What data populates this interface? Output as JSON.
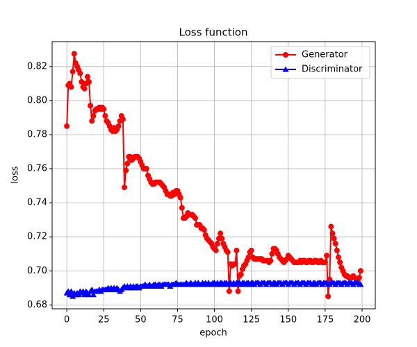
{
  "chart_data": {
    "type": "line",
    "title": "Loss function",
    "xlabel": "epoch",
    "ylabel": "loss",
    "x": [
      0,
      1,
      2,
      3,
      4,
      5,
      6,
      7,
      8,
      9,
      10,
      11,
      12,
      13,
      14,
      15,
      16,
      17,
      18,
      19,
      20,
      21,
      22,
      23,
      24,
      25,
      26,
      27,
      28,
      29,
      30,
      31,
      32,
      33,
      34,
      35,
      36,
      37,
      38,
      39,
      40,
      41,
      42,
      43,
      44,
      45,
      46,
      47,
      48,
      49,
      50,
      51,
      52,
      53,
      54,
      55,
      56,
      57,
      58,
      59,
      60,
      61,
      62,
      63,
      64,
      65,
      66,
      67,
      68,
      69,
      70,
      71,
      72,
      73,
      74,
      75,
      76,
      77,
      78,
      79,
      80,
      81,
      82,
      83,
      84,
      85,
      86,
      87,
      88,
      89,
      90,
      91,
      92,
      93,
      94,
      95,
      96,
      97,
      98,
      99,
      100,
      101,
      102,
      103,
      104,
      105,
      106,
      107,
      108,
      109,
      110,
      111,
      112,
      113,
      114,
      115,
      116,
      117,
      118,
      119,
      120,
      121,
      122,
      123,
      124,
      125,
      126,
      127,
      128,
      129,
      130,
      131,
      132,
      133,
      134,
      135,
      136,
      137,
      138,
      139,
      140,
      141,
      142,
      143,
      144,
      145,
      146,
      147,
      148,
      149,
      150,
      151,
      152,
      153,
      154,
      155,
      156,
      157,
      158,
      159,
      160,
      161,
      162,
      163,
      164,
      165,
      166,
      167,
      168,
      169,
      170,
      171,
      172,
      173,
      174,
      175,
      176,
      177,
      178,
      179,
      180,
      181,
      182,
      183,
      184,
      185,
      186,
      187,
      188,
      189,
      190,
      191,
      192,
      193,
      194,
      195,
      196,
      197,
      198,
      199
    ],
    "series": [
      {
        "name": "Generator",
        "color": "#ff0000",
        "marker": "o",
        "values": [
          0.785,
          0.809,
          0.81,
          0.808,
          0.817,
          0.8275,
          0.822,
          0.82,
          0.818,
          0.816,
          0.811,
          0.808,
          0.807,
          0.81,
          0.814,
          0.811,
          0.797,
          0.788,
          0.791,
          0.794,
          0.795,
          0.795,
          0.796,
          0.795,
          0.796,
          0.795,
          0.791,
          0.788,
          0.787,
          0.785,
          0.783,
          0.782,
          0.784,
          0.782,
          0.783,
          0.785,
          0.788,
          0.791,
          0.789,
          0.749,
          0.759,
          0.763,
          0.767,
          0.767,
          0.765,
          0.766,
          0.767,
          0.767,
          0.767,
          0.766,
          0.764,
          0.762,
          0.76,
          0.76,
          0.76,
          0.756,
          0.754,
          0.752,
          0.751,
          0.751,
          0.752,
          0.752,
          0.752,
          0.752,
          0.751,
          0.75,
          0.749,
          0.747,
          0.745,
          0.745,
          0.744,
          0.744,
          0.746,
          0.745,
          0.747,
          0.747,
          0.745,
          0.743,
          0.737,
          0.731,
          0.731,
          0.732,
          0.734,
          0.733,
          0.733,
          0.733,
          0.732,
          0.731,
          0.727,
          0.727,
          0.727,
          0.725,
          0.725,
          0.724,
          0.721,
          0.719,
          0.718,
          0.717,
          0.716,
          0.714,
          0.713,
          0.712,
          0.716,
          0.719,
          0.722,
          0.719,
          0.716,
          0.714,
          0.712,
          0.711,
          0.688,
          0.704,
          0.703,
          0.704,
          0.704,
          0.712,
          0.688,
          0.697,
          0.698,
          0.701,
          0.703,
          0.704,
          0.706,
          0.708,
          0.711,
          0.712,
          0.708,
          0.707,
          0.707,
          0.707,
          0.707,
          0.707,
          0.707,
          0.706,
          0.706,
          0.706,
          0.706,
          0.705,
          0.706,
          0.71,
          0.713,
          0.713,
          0.712,
          0.71,
          0.708,
          0.707,
          0.706,
          0.705,
          0.706,
          0.707,
          0.709,
          0.708,
          0.707,
          0.706,
          0.705,
          0.705,
          0.705,
          0.705,
          0.706,
          0.705,
          0.706,
          0.706,
          0.705,
          0.705,
          0.706,
          0.706,
          0.705,
          0.705,
          0.706,
          0.706,
          0.705,
          0.705,
          0.706,
          0.705,
          0.705,
          0.705,
          0.709,
          0.685,
          0.695,
          0.726,
          0.722,
          0.719,
          0.716,
          0.712,
          0.708,
          0.705,
          0.702,
          0.7,
          0.698,
          0.697,
          0.697,
          0.696,
          0.696,
          0.696,
          0.697,
          0.696,
          0.695,
          0.694,
          0.696,
          0.7
        ]
      },
      {
        "name": "Discriminator",
        "color": "#0000ff",
        "marker": "^",
        "values": [
          0.687,
          0.688,
          0.686,
          0.688,
          0.685,
          0.687,
          0.686,
          0.687,
          0.686,
          0.688,
          0.687,
          0.688,
          0.686,
          0.688,
          0.687,
          0.686,
          0.688,
          0.689,
          0.686,
          0.688,
          0.688,
          0.688,
          0.689,
          0.688,
          0.689,
          0.689,
          0.689,
          0.689,
          0.69,
          0.689,
          0.69,
          0.689,
          0.69,
          0.689,
          0.69,
          0.689,
          0.688,
          0.689,
          0.69,
          0.691,
          0.69,
          0.691,
          0.69,
          0.691,
          0.69,
          0.691,
          0.69,
          0.691,
          0.691,
          0.69,
          0.691,
          0.691,
          0.691,
          0.692,
          0.691,
          0.691,
          0.692,
          0.691,
          0.691,
          0.692,
          0.692,
          0.691,
          0.692,
          0.692,
          0.691,
          0.692,
          0.692,
          0.692,
          0.692,
          0.692,
          0.691,
          0.692,
          0.692,
          0.692,
          0.693,
          0.692,
          0.692,
          0.692,
          0.692,
          0.692,
          0.692,
          0.693,
          0.692,
          0.692,
          0.693,
          0.692,
          0.692,
          0.693,
          0.692,
          0.693,
          0.692,
          0.692,
          0.693,
          0.692,
          0.693,
          0.692,
          0.693,
          0.692,
          0.692,
          0.693,
          0.693,
          0.692,
          0.693,
          0.692,
          0.693,
          0.693,
          0.692,
          0.693,
          0.693,
          0.692,
          0.693,
          0.693,
          0.692,
          0.693,
          0.692,
          0.693,
          0.693,
          0.693,
          0.692,
          0.693,
          0.693,
          0.692,
          0.693,
          0.693,
          0.692,
          0.693,
          0.693,
          0.692,
          0.693,
          0.693,
          0.693,
          0.692,
          0.693,
          0.693,
          0.693,
          0.692,
          0.693,
          0.693,
          0.693,
          0.692,
          0.693,
          0.693,
          0.692,
          0.693,
          0.693,
          0.693,
          0.692,
          0.693,
          0.693,
          0.693,
          0.692,
          0.693,
          0.693,
          0.693,
          0.692,
          0.693,
          0.693,
          0.693,
          0.692,
          0.693,
          0.693,
          0.693,
          0.692,
          0.693,
          0.693,
          0.693,
          0.692,
          0.693,
          0.693,
          0.692,
          0.693,
          0.693,
          0.693,
          0.692,
          0.693,
          0.693,
          0.693,
          0.692,
          0.692,
          0.693,
          0.693,
          0.693,
          0.692,
          0.693,
          0.693,
          0.693,
          0.692,
          0.693,
          0.693,
          0.693,
          0.692,
          0.693,
          0.693,
          0.693,
          0.692,
          0.693,
          0.693,
          0.693,
          0.692,
          0.692
        ]
      }
    ],
    "xlim": [
      -9.95,
      208.95
    ],
    "xticks": [
      0,
      25,
      50,
      75,
      100,
      125,
      150,
      175,
      200
    ],
    "ylim": [
      0.6777,
      0.8346
    ],
    "yticks": [
      0.68,
      {
        "value": 0.7,
        "label": "0.70"
      },
      0.72,
      0.74,
      0.76,
      0.78,
      {
        "value": 0.8,
        "label": "0.80"
      },
      0.82
    ],
    "grid": true,
    "legend": "upper right"
  }
}
